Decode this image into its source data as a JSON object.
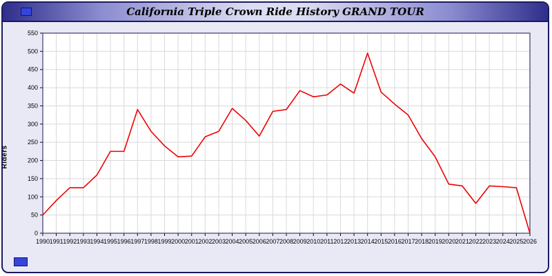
{
  "header": {
    "title": "California Triple Crown Ride History GRAND TOUR"
  },
  "icons": {
    "window_marker": "blue-square-icon",
    "footer_marker": "blue-square-icon"
  },
  "colors": {
    "line": "#ee0000",
    "plot_border": "#3a3a6e",
    "grid": "#d9d9d9",
    "plot_bg": "#ffffff",
    "page_bg": "#e9e9f6",
    "titlebar_edge": "#2e2e8c",
    "titlebar_center": "#dcdcf2"
  },
  "chart_data": {
    "type": "line",
    "title": "California Triple Crown Ride History GRAND TOUR",
    "xlabel": "",
    "ylabel": "Riders",
    "ylim": [
      0,
      550
    ],
    "ytick_step": 50,
    "grid": true,
    "legend_position": "none",
    "x": [
      1990,
      1991,
      1992,
      1993,
      1994,
      1995,
      1996,
      1997,
      1998,
      1999,
      2000,
      2001,
      2002,
      2003,
      2004,
      2005,
      2006,
      2007,
      2008,
      2009,
      2010,
      2011,
      2012,
      2013,
      2014,
      2015,
      2016,
      2017,
      2018,
      2019,
      2020,
      2021,
      2022,
      2023,
      2024,
      2025,
      2026
    ],
    "series": [
      {
        "name": "Riders",
        "color": "#ee0000",
        "values": [
          50,
          90,
          125,
          125,
          160,
          225,
          225,
          340,
          280,
          240,
          210,
          212,
          265,
          280,
          343,
          310,
          267,
          335,
          340,
          392,
          375,
          380,
          410,
          385,
          495,
          388,
          355,
          325,
          260,
          210,
          135,
          130,
          82,
          130,
          128,
          125,
          0
        ]
      }
    ]
  }
}
